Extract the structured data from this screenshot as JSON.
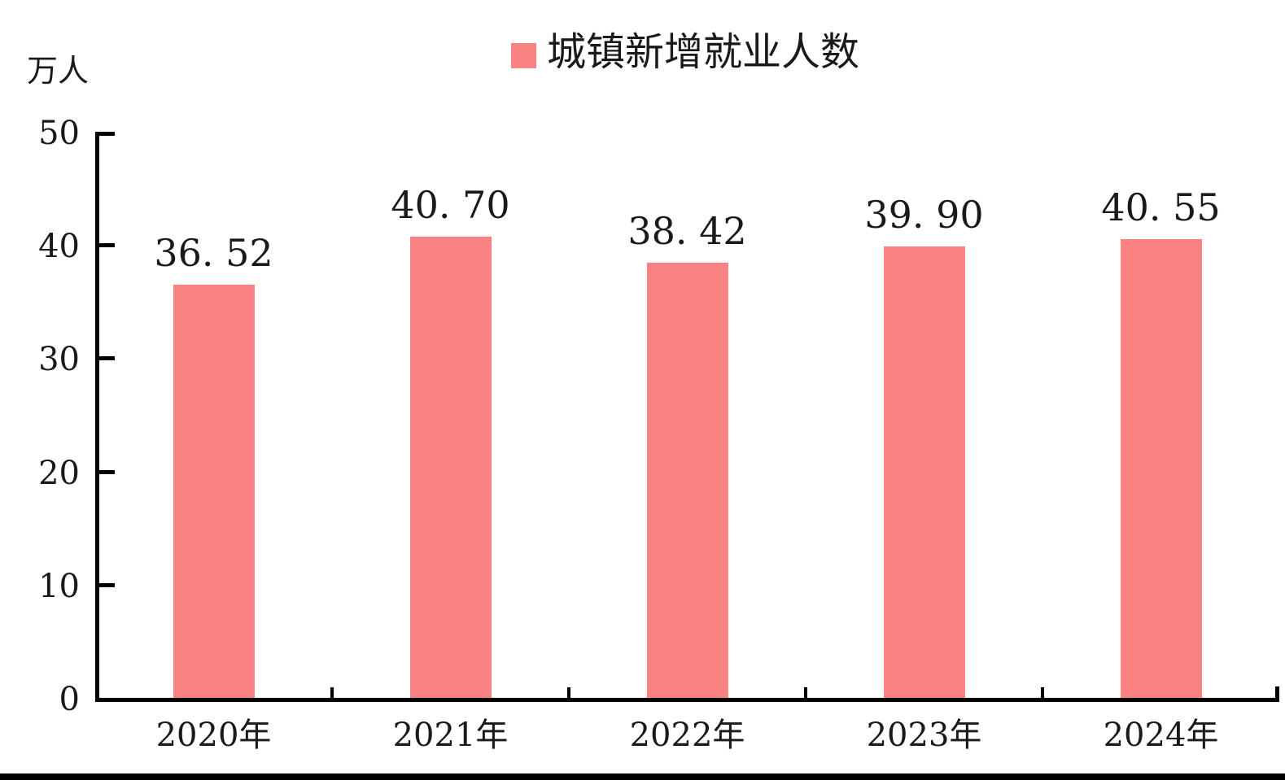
{
  "chart_data": {
    "type": "bar",
    "unit_label": "万人",
    "categories": [
      "2020年",
      "2021年",
      "2022年",
      "2023年",
      "2024年"
    ],
    "series": [
      {
        "name": "城镇新增就业人数",
        "values": [
          36.52,
          40.7,
          38.42,
          39.9,
          40.55
        ],
        "data_labels": [
          "36.52",
          "40.70",
          "38.42",
          "39.90",
          "40.55"
        ],
        "color": "#FB8282"
      }
    ],
    "y_axis": {
      "min": 0,
      "max": 50,
      "ticks": [
        0,
        10,
        20,
        30,
        40,
        50
      ]
    },
    "legend_position": "top-center",
    "grid": false
  },
  "colors": {
    "bar": "#FB8282",
    "axis": "#000000",
    "text": "#1a1a1a",
    "background": "#ffffff",
    "bottom_strip": "#000000"
  }
}
